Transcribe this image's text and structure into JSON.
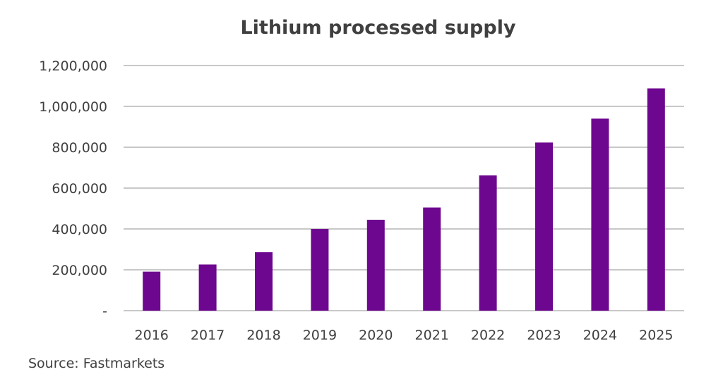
{
  "chart_data": {
    "type": "bar",
    "title": "Lithium processed supply",
    "categories": [
      "2016",
      "2017",
      "2018",
      "2019",
      "2020",
      "2021",
      "2022",
      "2023",
      "2024",
      "2025"
    ],
    "values": [
      191000,
      226000,
      286000,
      400000,
      445000,
      505000,
      662000,
      823000,
      940000,
      1088000
    ],
    "ylim": [
      0,
      1200000
    ],
    "yticks": [
      0,
      200000,
      400000,
      600000,
      800000,
      1000000,
      1200000
    ],
    "ytick_labels": [
      "-",
      "200,000",
      "400,000",
      "600,000",
      "800,000",
      "1,000,000",
      "1,200,000"
    ],
    "grid": true,
    "legend": "none",
    "bar_color": "#6e078f"
  },
  "source": "Source: Fastmarkets"
}
